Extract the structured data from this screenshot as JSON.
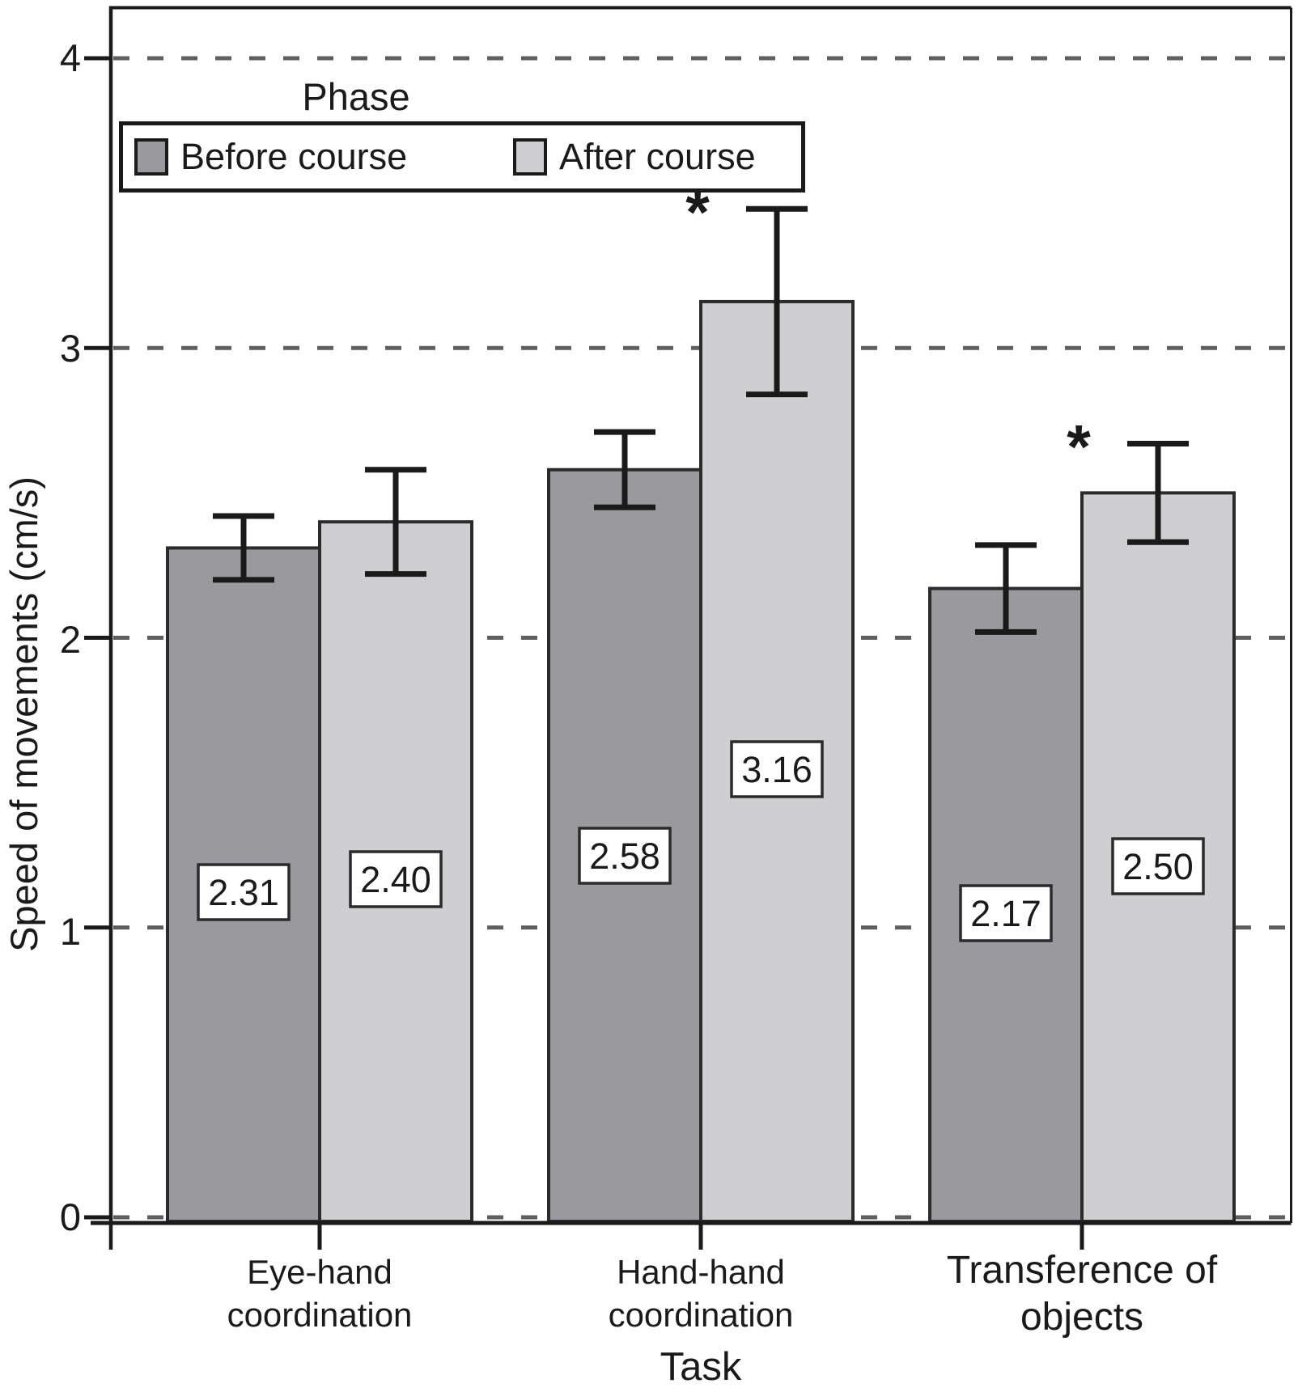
{
  "chart_data": {
    "type": "bar",
    "title": "",
    "xlabel": "Task",
    "ylabel": "Speed of movements (cm/s)",
    "ylim": [
      0,
      4.2
    ],
    "yticks": [
      0,
      1,
      2,
      3,
      4
    ],
    "grid": "dashed-horizontal",
    "legend": {
      "title": "Phase",
      "position": "top-left-inside",
      "entries": [
        {
          "label": "Before course",
          "color": "#9a9a9e"
        },
        {
          "label": "After course",
          "color": "#cfcfd1"
        }
      ]
    },
    "categories": [
      {
        "line1": "Eye-hand",
        "line2": "coordination"
      },
      {
        "line1": "Hand-hand",
        "line2": "coordination"
      },
      {
        "line1": "Transference of",
        "line2": "objects"
      }
    ],
    "series": [
      {
        "name": "Before course",
        "color": "#9a9a9e",
        "values": [
          2.31,
          2.58,
          2.17
        ],
        "errors": [
          0.11,
          0.13,
          0.15
        ],
        "value_labels": [
          "2.31",
          "2.58",
          "2.17"
        ],
        "significant": [
          false,
          false,
          false
        ]
      },
      {
        "name": "After course",
        "color": "#cfcfd1",
        "values": [
          2.4,
          3.16,
          2.5
        ],
        "errors": [
          0.18,
          0.32,
          0.17
        ],
        "value_labels": [
          "2.40",
          "3.16",
          "2.50"
        ],
        "significant": [
          false,
          true,
          true
        ]
      }
    ],
    "significance_marker": "*",
    "colors": {
      "bar_border": "#2b2b2b",
      "axis": "#1a1a1a",
      "gridline": "#5f5f5f",
      "value_box_bg": "#ffffff",
      "text": "#1a1a1a"
    }
  }
}
